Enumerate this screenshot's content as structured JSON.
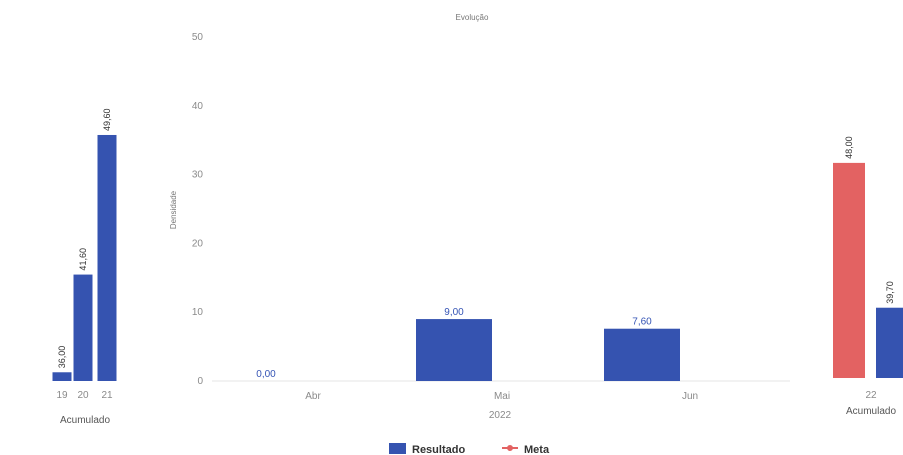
{
  "chart_data": {
    "title": "Evolução",
    "colors": {
      "resultado": "#3553b0",
      "meta": "#e36262"
    },
    "legend": {
      "position": "bottom",
      "items": [
        "Resultado",
        "Meta"
      ]
    },
    "left_panel": {
      "type": "bar",
      "xlabel": "Acumulado",
      "categories": [
        "19",
        "20",
        "21"
      ],
      "values": [
        36.0,
        41.6,
        49.6
      ],
      "value_labels": [
        "36,00",
        "41,60",
        "49,60"
      ],
      "ylim": [
        35.5,
        50
      ]
    },
    "main": {
      "type": "bar",
      "ylabel": "Densidade",
      "xlabel": "2022",
      "categories": [
        "Abr",
        "Mai",
        "Jun"
      ],
      "values": [
        0.0,
        9.0,
        7.6
      ],
      "value_labels": [
        "0,00",
        "9,00",
        "7,60"
      ],
      "yticks": [
        "0",
        "10",
        "20",
        "30",
        "40",
        "50"
      ],
      "ylim": [
        0,
        50
      ],
      "grid": false
    },
    "right_panel": {
      "type": "bar",
      "xlabel": "Acumulado",
      "category": "22",
      "series": [
        {
          "name": "Meta",
          "value": 48.0,
          "label": "48,00"
        },
        {
          "name": "Resultado",
          "value": 39.7,
          "label": "39,70"
        }
      ],
      "ylim": [
        35.5,
        50
      ]
    }
  }
}
